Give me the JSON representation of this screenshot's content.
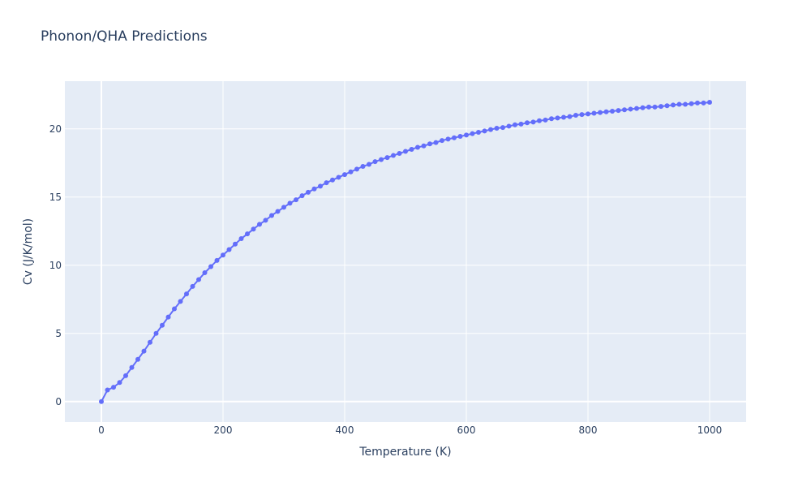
{
  "chart_data": {
    "type": "line",
    "title": "Phonon/QHA Predictions",
    "xlabel": "Temperature (K)",
    "ylabel": "Cv (J/K/mol)",
    "xlim": [
      -60,
      1060
    ],
    "ylim": [
      -1.5,
      23.5
    ],
    "xticks": [
      0,
      200,
      400,
      600,
      800,
      1000
    ],
    "yticks": [
      0,
      5,
      10,
      15,
      20
    ],
    "grid": true,
    "legend": "none",
    "colors": {
      "plot_bg": "#e5ecf6",
      "grid": "#ffffff",
      "series": "#636efa",
      "text": "#2a3f5f"
    },
    "series": [
      {
        "x": [
          0,
          10,
          20,
          30,
          40,
          50,
          60,
          70,
          80,
          90,
          100,
          110,
          120,
          130,
          140,
          150,
          160,
          170,
          180,
          190,
          200,
          210,
          220,
          230,
          240,
          250,
          260,
          270,
          280,
          290,
          300,
          310,
          320,
          330,
          340,
          350,
          360,
          370,
          380,
          390,
          400,
          410,
          420,
          430,
          440,
          450,
          460,
          470,
          480,
          490,
          500,
          510,
          520,
          530,
          540,
          550,
          560,
          570,
          580,
          590,
          600,
          610,
          620,
          630,
          640,
          650,
          660,
          670,
          680,
          690,
          700,
          710,
          720,
          730,
          740,
          750,
          760,
          770,
          780,
          790,
          800,
          810,
          820,
          830,
          840,
          850,
          860,
          870,
          880,
          890,
          900,
          910,
          920,
          930,
          940,
          950,
          960,
          970,
          980,
          990,
          1000
        ],
        "y": [
          0,
          0.85,
          1.05,
          1.4,
          1.9,
          2.5,
          3.1,
          3.7,
          4.35,
          5.0,
          5.6,
          6.2,
          6.8,
          7.35,
          7.9,
          8.45,
          8.95,
          9.45,
          9.9,
          10.35,
          10.75,
          11.15,
          11.55,
          11.95,
          12.3,
          12.65,
          13.0,
          13.3,
          13.65,
          13.95,
          14.25,
          14.55,
          14.8,
          15.1,
          15.35,
          15.6,
          15.8,
          16.05,
          16.25,
          16.45,
          16.65,
          16.85,
          17.05,
          17.25,
          17.4,
          17.6,
          17.75,
          17.9,
          18.05,
          18.2,
          18.35,
          18.5,
          18.65,
          18.75,
          18.9,
          19.0,
          19.15,
          19.25,
          19.35,
          19.45,
          19.55,
          19.65,
          19.75,
          19.85,
          19.95,
          20.05,
          20.1,
          20.2,
          20.3,
          20.35,
          20.45,
          20.5,
          20.6,
          20.65,
          20.75,
          20.8,
          20.85,
          20.9,
          21.0,
          21.05,
          21.1,
          21.15,
          21.2,
          21.25,
          21.3,
          21.35,
          21.4,
          21.45,
          21.5,
          21.55,
          21.6,
          21.6,
          21.65,
          21.7,
          21.75,
          21.8,
          21.8,
          21.85,
          21.9,
          21.9,
          21.95
        ]
      }
    ]
  }
}
